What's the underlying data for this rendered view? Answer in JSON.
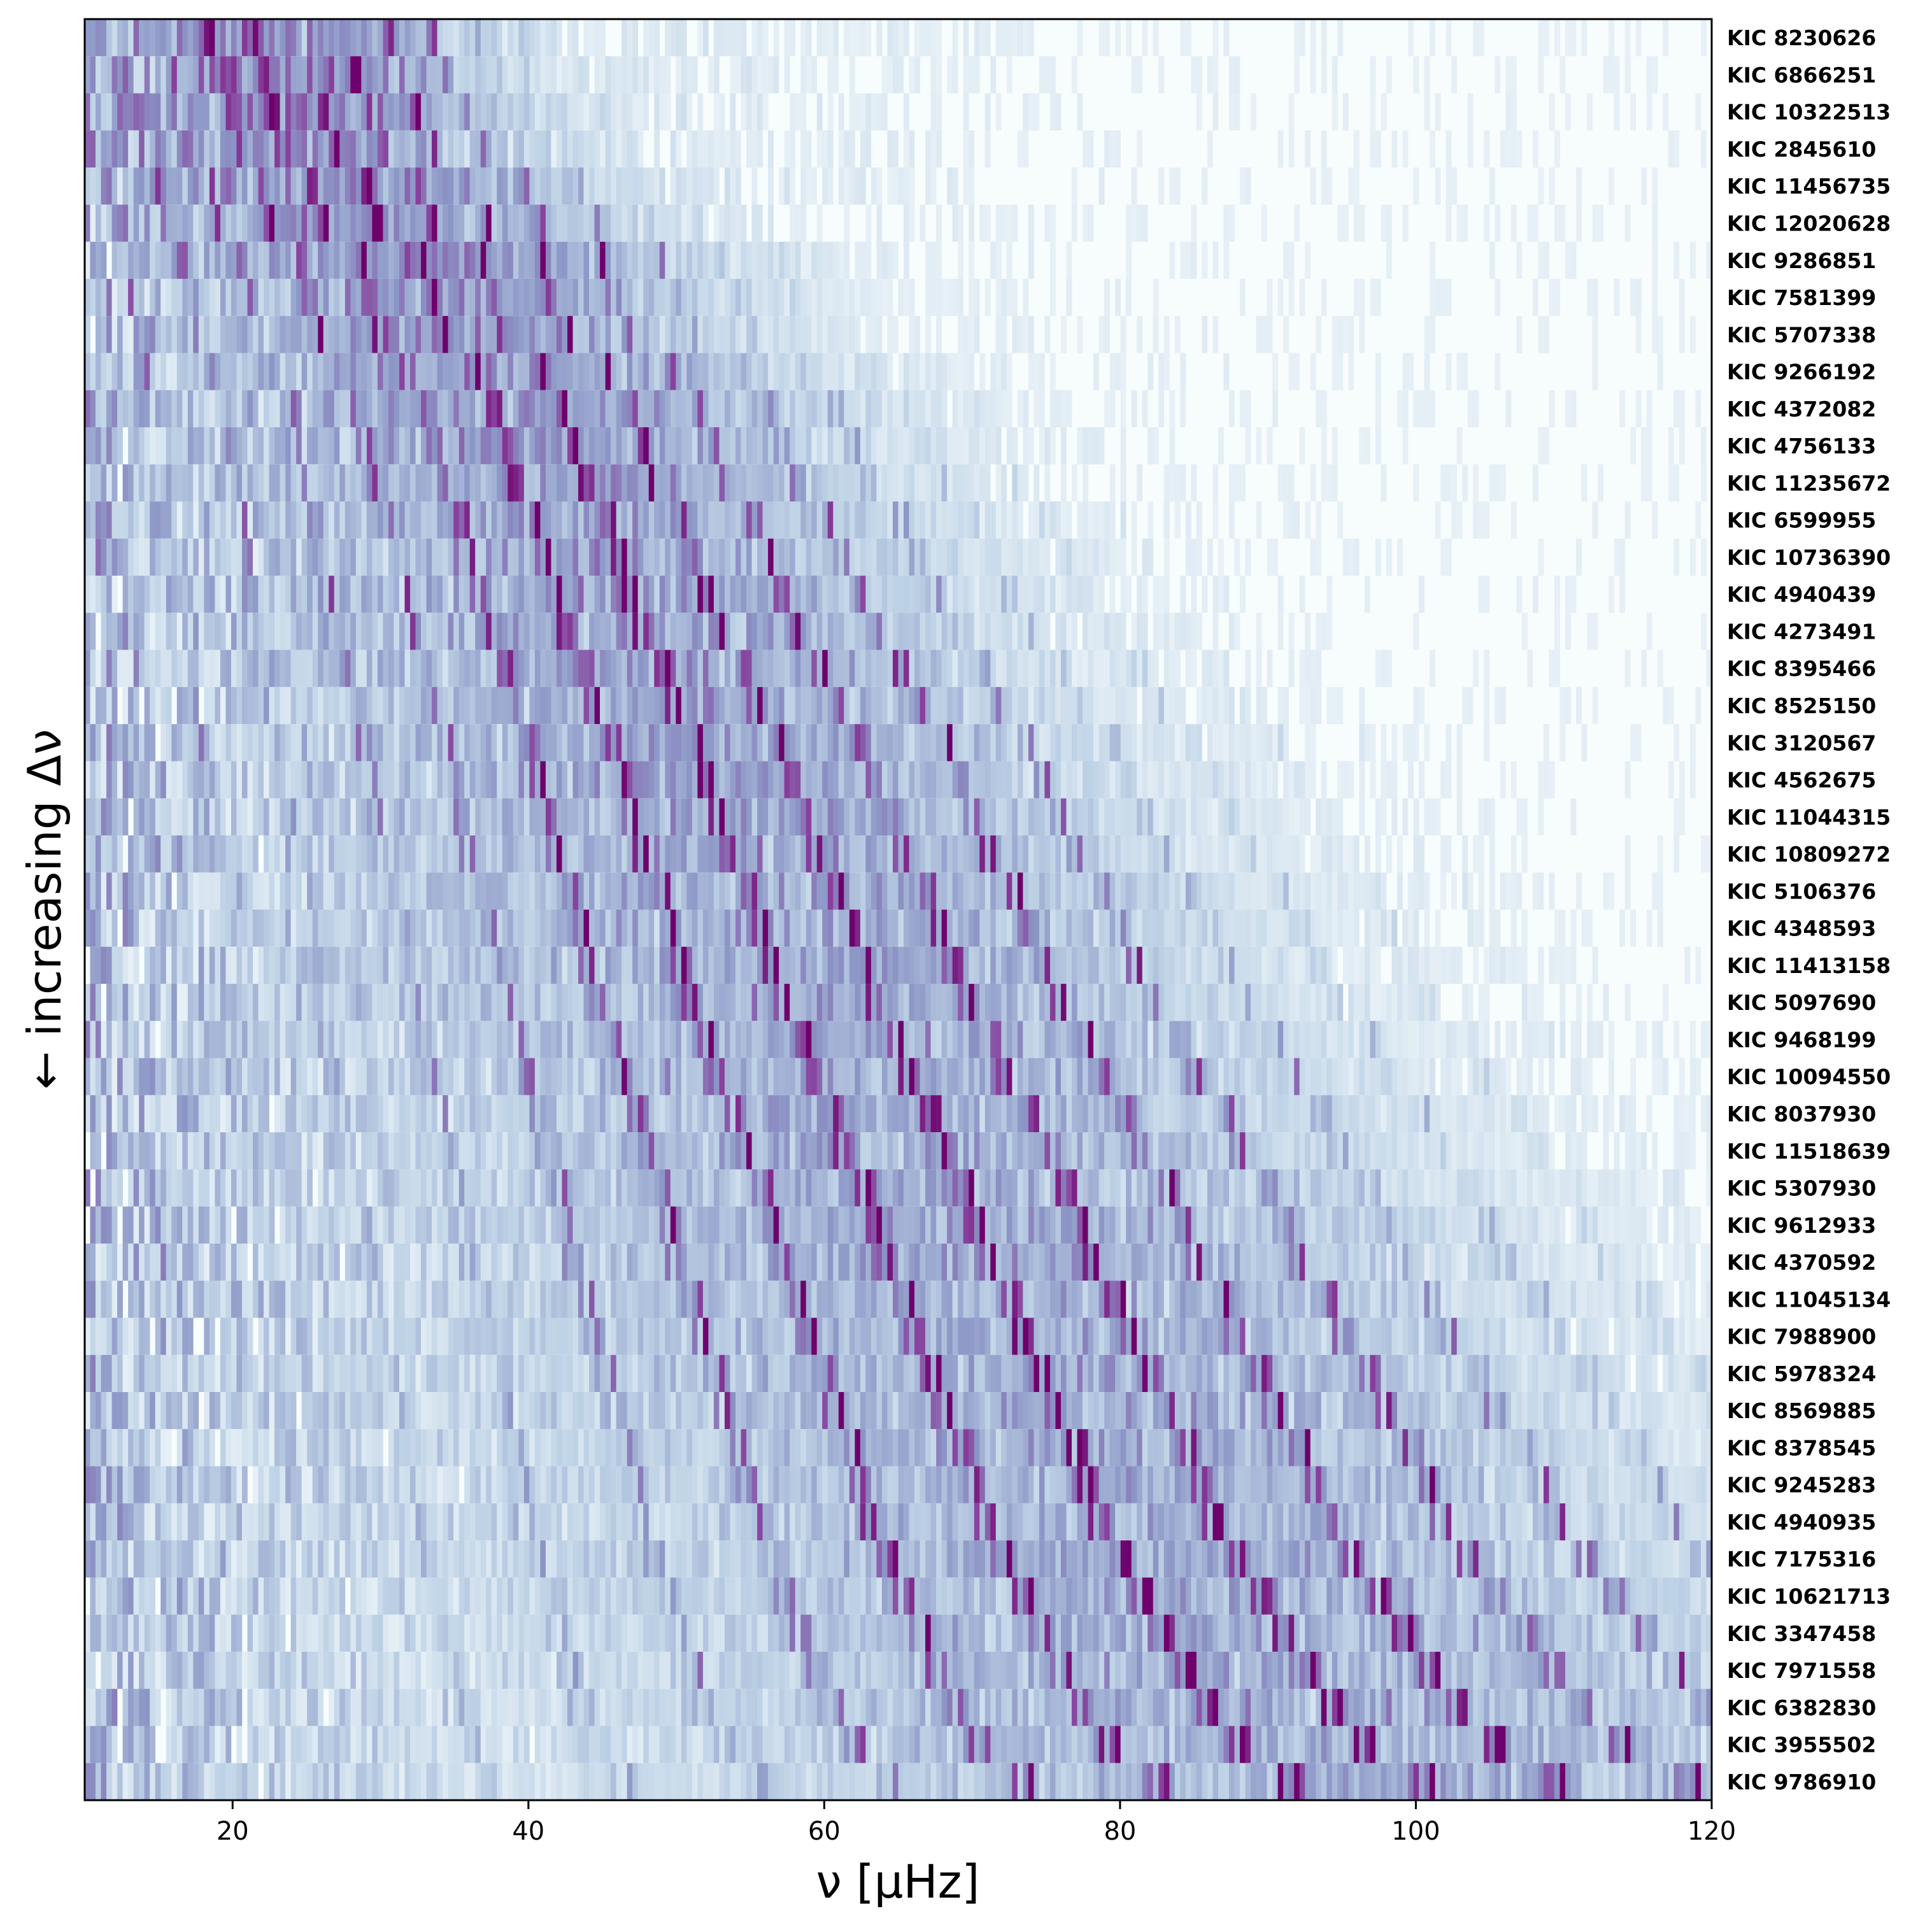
{
  "chart_data": {
    "type": "heatmap",
    "xlabel": "ν [μHz]",
    "ylabel": "← increasing Δν",
    "xlim": [
      10,
      120
    ],
    "x_ticks": [
      20,
      40,
      60,
      80,
      100,
      120
    ],
    "x_tick_labels": [
      "20",
      "40",
      "60",
      "80",
      "100",
      "120"
    ],
    "colormap": [
      "#f7fcfd",
      "#bfd3e6",
      "#8c96c6",
      "#88419d",
      "#6e016b"
    ],
    "rows": [
      {
        "star": "KIC 8230626",
        "dnu_order": 1,
        "numax": 24
      },
      {
        "star": "KIC 6866251",
        "dnu_order": 2,
        "numax": 25
      },
      {
        "star": "KIC 10322513",
        "dnu_order": 3,
        "numax": 26
      },
      {
        "star": "KIC 2845610",
        "dnu_order": 4,
        "numax": 27
      },
      {
        "star": "KIC 11456735",
        "dnu_order": 5,
        "numax": 30
      },
      {
        "star": "KIC 12020628",
        "dnu_order": 6,
        "numax": 31
      },
      {
        "star": "KIC 9286851",
        "dnu_order": 7,
        "numax": 35
      },
      {
        "star": "KIC 7581399",
        "dnu_order": 8,
        "numax": 36
      },
      {
        "star": "KIC 5707338",
        "dnu_order": 9,
        "numax": 37
      },
      {
        "star": "KIC 9266192",
        "dnu_order": 10,
        "numax": 40
      },
      {
        "star": "KIC 4372082",
        "dnu_order": 11,
        "numax": 42
      },
      {
        "star": "KIC 4756133",
        "dnu_order": 12,
        "numax": 43
      },
      {
        "star": "KIC 11235672",
        "dnu_order": 13,
        "numax": 44
      },
      {
        "star": "KIC 6599955",
        "dnu_order": 14,
        "numax": 46
      },
      {
        "star": "KIC 10736390",
        "dnu_order": 15,
        "numax": 47
      },
      {
        "star": "KIC 4940439",
        "dnu_order": 16,
        "numax": 48
      },
      {
        "star": "KIC 4273491",
        "dnu_order": 17,
        "numax": 49
      },
      {
        "star": "KIC 8395466",
        "dnu_order": 18,
        "numax": 51
      },
      {
        "star": "KIC 8525150",
        "dnu_order": 19,
        "numax": 52
      },
      {
        "star": "KIC 3120567",
        "dnu_order": 20,
        "numax": 54
      },
      {
        "star": "KIC 4562675",
        "dnu_order": 21,
        "numax": 55
      },
      {
        "star": "KIC 11044315",
        "dnu_order": 22,
        "numax": 56
      },
      {
        "star": "KIC 10809272",
        "dnu_order": 23,
        "numax": 57
      },
      {
        "star": "KIC 5106376",
        "dnu_order": 24,
        "numax": 59
      },
      {
        "star": "KIC 4348593",
        "dnu_order": 25,
        "numax": 60
      },
      {
        "star": "KIC 11413158",
        "dnu_order": 26,
        "numax": 61
      },
      {
        "star": "KIC 5097690",
        "dnu_order": 27,
        "numax": 62
      },
      {
        "star": "KIC 9468199",
        "dnu_order": 28,
        "numax": 64
      },
      {
        "star": "KIC 10094550",
        "dnu_order": 29,
        "numax": 65
      },
      {
        "star": "KIC 8037930",
        "dnu_order": 30,
        "numax": 67
      },
      {
        "star": "KIC 11518639",
        "dnu_order": 31,
        "numax": 68
      },
      {
        "star": "KIC 5307930",
        "dnu_order": 32,
        "numax": 70
      },
      {
        "star": "KIC 9612933",
        "dnu_order": 33,
        "numax": 71
      },
      {
        "star": "KIC 4370592",
        "dnu_order": 34,
        "numax": 72
      },
      {
        "star": "KIC 11045134",
        "dnu_order": 35,
        "numax": 74
      },
      {
        "star": "KIC 7988900",
        "dnu_order": 36,
        "numax": 75
      },
      {
        "star": "KIC 5978324",
        "dnu_order": 37,
        "numax": 77
      },
      {
        "star": "KIC 8569885",
        "dnu_order": 38,
        "numax": 78
      },
      {
        "star": "KIC 8378545",
        "dnu_order": 39,
        "numax": 80
      },
      {
        "star": "KIC 9245283",
        "dnu_order": 40,
        "numax": 81
      },
      {
        "star": "KIC 4940935",
        "dnu_order": 41,
        "numax": 82
      },
      {
        "star": "KIC 7175316",
        "dnu_order": 42,
        "numax": 84
      },
      {
        "star": "KIC 10621713",
        "dnu_order": 43,
        "numax": 86
      },
      {
        "star": "KIC 3347458",
        "dnu_order": 44,
        "numax": 88
      },
      {
        "star": "KIC 7971558",
        "dnu_order": 45,
        "numax": 90
      },
      {
        "star": "KIC 6382830",
        "dnu_order": 46,
        "numax": 92
      },
      {
        "star": "KIC 3955502",
        "dnu_order": 47,
        "numax": 95
      },
      {
        "star": "KIC 9786910",
        "dnu_order": 48,
        "numax": 100
      }
    ]
  }
}
